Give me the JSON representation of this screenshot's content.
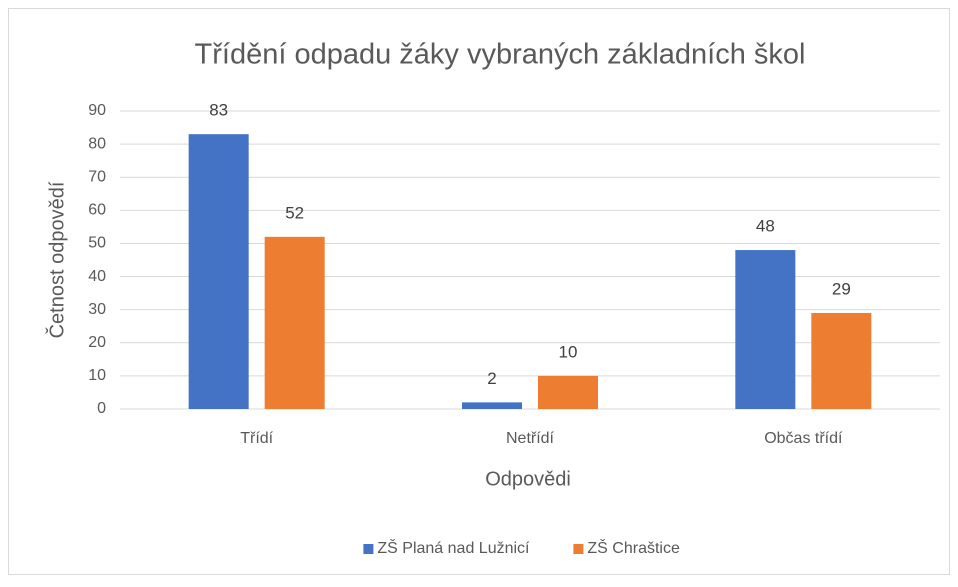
{
  "chart_data": {
    "type": "bar",
    "title": "Třídění odpadu žáky vybraných základních škol",
    "x_label": "Odpovědi",
    "y_label": "Četnost odpovědí",
    "categories": [
      "Třídí",
      "Netřídí",
      "Občas třídí"
    ],
    "series": [
      {
        "name": "ZŠ Planá nad Lužnicí",
        "color": "#4472c4",
        "values": [
          83,
          2,
          48
        ]
      },
      {
        "name": "ZŠ Chraštice",
        "color": "#ed7d31",
        "values": [
          52,
          10,
          29
        ]
      }
    ],
    "ylim": [
      0,
      90
    ],
    "yticks": [
      0,
      10,
      20,
      30,
      40,
      50,
      60,
      70,
      80,
      90
    ],
    "grid": true,
    "legend": "bottom"
  }
}
